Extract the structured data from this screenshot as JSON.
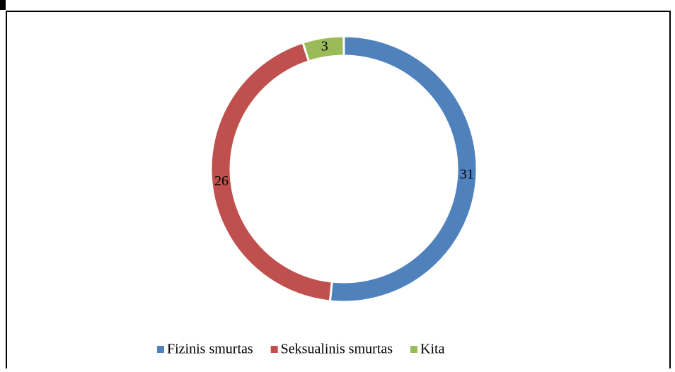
{
  "chart_data": {
    "type": "donut",
    "categories": [
      "Fizinis smurtas",
      "Seksualinis smurtas",
      "Kita"
    ],
    "values": [
      31,
      26,
      3
    ],
    "colors": [
      "#4f81bd",
      "#c0504d",
      "#9bbb59"
    ],
    "legend": "bottom"
  }
}
